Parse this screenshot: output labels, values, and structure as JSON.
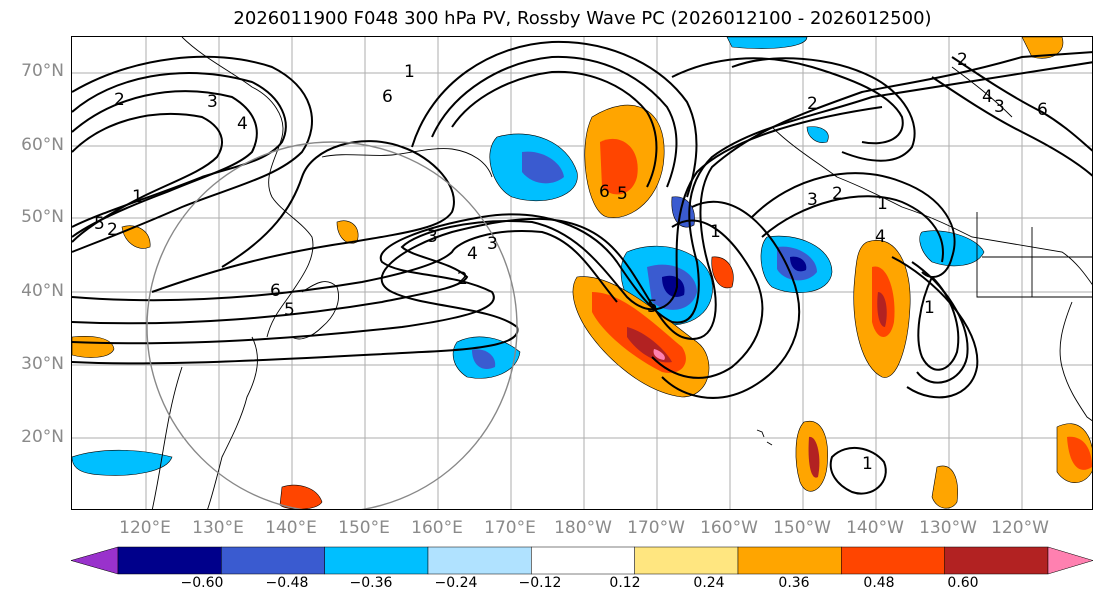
{
  "title": "2026011900 F048 300 hPa PV, Rossby Wave PC (2026012100 - 2026012500)",
  "lat_labels": [
    "70°N",
    "60°N",
    "50°N",
    "40°N",
    "30°N",
    "20°N"
  ],
  "lon_labels": [
    "120°E",
    "130°E",
    "140°E",
    "150°E",
    "160°E",
    "170°E",
    "180°W",
    "170°W",
    "160°W",
    "150°W",
    "140°W",
    "130°W",
    "120°W"
  ],
  "colorbar": {
    "ticks": [
      "−0.60",
      "−0.48",
      "−0.36",
      "−0.24",
      "−0.12",
      "0.12",
      "0.24",
      "0.36",
      "0.48",
      "0.60"
    ],
    "colors": [
      "#9932cc",
      "#00008b",
      "#3a5bd0",
      "#00bfff",
      "#b0e2ff",
      "#ffffff",
      "#ffe680",
      "#ffa500",
      "#ff4500",
      "#b22222",
      "#ff80b0"
    ]
  },
  "contour_labels": [
    "1",
    "6",
    "3",
    "2",
    "4",
    "5",
    "2",
    "3",
    "2",
    "6",
    "5",
    "1",
    "4",
    "3",
    "2",
    "5",
    "6",
    "1",
    "2",
    "3",
    "1",
    "4",
    "1",
    "3",
    "2",
    "4",
    "5",
    "6",
    "1"
  ],
  "chart_data": {
    "type": "map",
    "projection": "cylindrical",
    "lat_range": [
      10,
      75
    ],
    "lon_range": [
      110,
      250
    ],
    "fields": [
      "300 hPa PV (black contours)",
      "Rossby Wave PC (shaded)"
    ],
    "init": "2026011900",
    "forecast_hour": "F048",
    "window": "2026012100 - 2026012500"
  }
}
